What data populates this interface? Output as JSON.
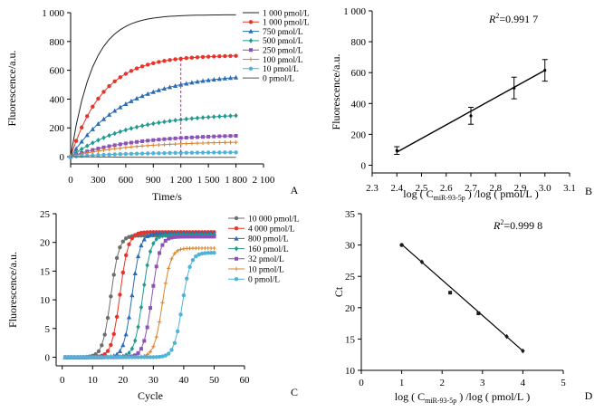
{
  "chart_data": [
    {
      "id": "A",
      "type": "line",
      "panel_label": "A",
      "xlabel": "Time/s",
      "ylabel": "Fluorescence/a.u.",
      "xlim": [
        0,
        2100
      ],
      "ylim": [
        -50,
        1000
      ],
      "xticks": [
        0,
        300,
        600,
        900,
        1200,
        1500,
        1800,
        2100
      ],
      "xtick_labels": [
        "0",
        "300",
        "600",
        "900",
        "1 200",
        "1 500",
        "1 800",
        "2 100"
      ],
      "yticks": [
        0,
        200,
        400,
        600,
        800,
        1000
      ],
      "ytick_labels": [
        "0",
        "200",
        "400",
        "600",
        "800",
        "1 000"
      ],
      "vline": {
        "x": 1200,
        "y0": 0,
        "y1": 680,
        "color": "#e0199b"
      },
      "series": [
        {
          "name": "1 000 pmol/L",
          "color": "#222222",
          "marker": "none",
          "final": 985,
          "k": 2.5
        },
        {
          "name": "1 000 pmol/L",
          "color": "#e8332a",
          "marker": "circle",
          "final": 700,
          "k": 1.7
        },
        {
          "name": "750 pmol/L",
          "color": "#2a6cb5",
          "marker": "triangle",
          "final": 550,
          "k": 1.0
        },
        {
          "name": "500 pmol/L",
          "color": "#1f9a8c",
          "marker": "diamond",
          "final": 285,
          "k": 0.95
        },
        {
          "name": "250 pmol/L",
          "color": "#8a52b8",
          "marker": "square",
          "final": 145,
          "k": 0.9
        },
        {
          "name": "100 pmol/L",
          "color": "#d98530",
          "marker": "plus",
          "final": 100,
          "k": 0.9
        },
        {
          "name": "10 pmol/L",
          "color": "#4fb3d9",
          "marker": "circle",
          "final": 30,
          "k": 0.9
        },
        {
          "name": "0 pmol/L",
          "color": "#555555",
          "marker": "none",
          "final": -5,
          "k": 0.9
        }
      ]
    },
    {
      "id": "B",
      "type": "scatter",
      "panel_label": "B",
      "xlabel_main": "log ( C",
      "xlabel_sub": "miR-93-5p",
      "xlabel_tail": " ) /log ( pmol/L )",
      "ylabel": "Fluorescence/a.u.",
      "xlim": [
        2.3,
        3.1
      ],
      "ylim": [
        -50,
        1000
      ],
      "xticks": [
        2.3,
        2.4,
        2.5,
        2.6,
        2.7,
        2.8,
        2.9,
        3.0,
        3.1
      ],
      "xtick_labels": [
        "2.3",
        "2.4",
        "2.5",
        "2.6",
        "2.7",
        "2.8",
        "2.9",
        "3.0",
        "3.1"
      ],
      "yticks": [
        0,
        200,
        400,
        600,
        800,
        1000
      ],
      "ytick_labels": [
        "0",
        "200",
        "400",
        "600",
        "800",
        "1 000"
      ],
      "r2_label": "R",
      "r2_sup": "2",
      "r2_value": "=0.991 7",
      "points": [
        {
          "x": 2.4,
          "y": 95,
          "err": 25
        },
        {
          "x": 2.7,
          "y": 320,
          "err": 55
        },
        {
          "x": 2.875,
          "y": 500,
          "err": 70
        },
        {
          "x": 3.0,
          "y": 615,
          "err": 70
        }
      ],
      "fit": {
        "x": [
          2.4,
          3.0
        ],
        "y": [
          85,
          615
        ]
      }
    },
    {
      "id": "C",
      "type": "line",
      "panel_label": "C",
      "xlabel": "Cycle",
      "ylabel": "Fluorescence/a.u.",
      "xlim": [
        -2,
        60
      ],
      "ylim": [
        -1.5,
        25
      ],
      "xticks": [
        0,
        10,
        20,
        30,
        40,
        50,
        60
      ],
      "xtick_labels": [
        "0",
        "10",
        "20",
        "30",
        "40",
        "50",
        "60"
      ],
      "yticks": [
        0,
        5,
        10,
        15,
        20,
        25
      ],
      "ytick_labels": [
        "0",
        "5",
        "10",
        "15",
        "20",
        "25"
      ],
      "series": [
        {
          "name": "10 000 pmol/L",
          "color": "#6e6e6e",
          "marker": "circle",
          "ct": 16,
          "plateau": 21.2
        },
        {
          "name": "4 000 pmol/L",
          "color": "#e8332a",
          "marker": "circle",
          "ct": 19,
          "plateau": 21.8
        },
        {
          "name": "800 pmol/L",
          "color": "#2a6cb5",
          "marker": "triangle",
          "ct": 23,
          "plateau": 21.6
        },
        {
          "name": "160 pmol/L",
          "color": "#1f9a8c",
          "marker": "diamond",
          "ct": 26.5,
          "plateau": 21.3
        },
        {
          "name": "32 pmol/L",
          "color": "#8a52b8",
          "marker": "square",
          "ct": 29.5,
          "plateau": 21.0
        },
        {
          "name": "10 pmol/L",
          "color": "#d98530",
          "marker": "plus",
          "ct": 33,
          "plateau": 19.0
        },
        {
          "name": "0 pmol/L",
          "color": "#4fb3d9",
          "marker": "circle",
          "ct": 39.5,
          "plateau": 18.2
        }
      ]
    },
    {
      "id": "D",
      "type": "scatter",
      "panel_label": "D",
      "xlabel_main": "log ( C",
      "xlabel_sub": "miR-93-5p",
      "xlabel_tail": " ) /log ( pmol/L )",
      "ylabel": "Ct",
      "xlim": [
        0,
        5
      ],
      "ylim": [
        10,
        35
      ],
      "xticks": [
        0,
        1,
        2,
        3,
        4,
        5
      ],
      "xtick_labels": [
        "0",
        "1",
        "2",
        "3",
        "4",
        "5"
      ],
      "yticks": [
        10,
        15,
        20,
        25,
        30,
        35
      ],
      "ytick_labels": [
        "10",
        "15",
        "20",
        "25",
        "30",
        "35"
      ],
      "r2_label": "R",
      "r2_sup": "2",
      "r2_value": "=0.999 8",
      "points": [
        {
          "x": 1.0,
          "y": 30.0,
          "marker": "circle"
        },
        {
          "x": 1.5,
          "y": 27.3,
          "marker": "diamond"
        },
        {
          "x": 2.2,
          "y": 22.4,
          "marker": "square"
        },
        {
          "x": 2.9,
          "y": 19.1,
          "marker": "square"
        },
        {
          "x": 3.6,
          "y": 15.4,
          "marker": "diamond"
        },
        {
          "x": 4.0,
          "y": 13.1,
          "marker": "diamond"
        }
      ],
      "fit": {
        "x": [
          1.0,
          4.0
        ],
        "y": [
          30.1,
          13.1
        ]
      }
    }
  ]
}
